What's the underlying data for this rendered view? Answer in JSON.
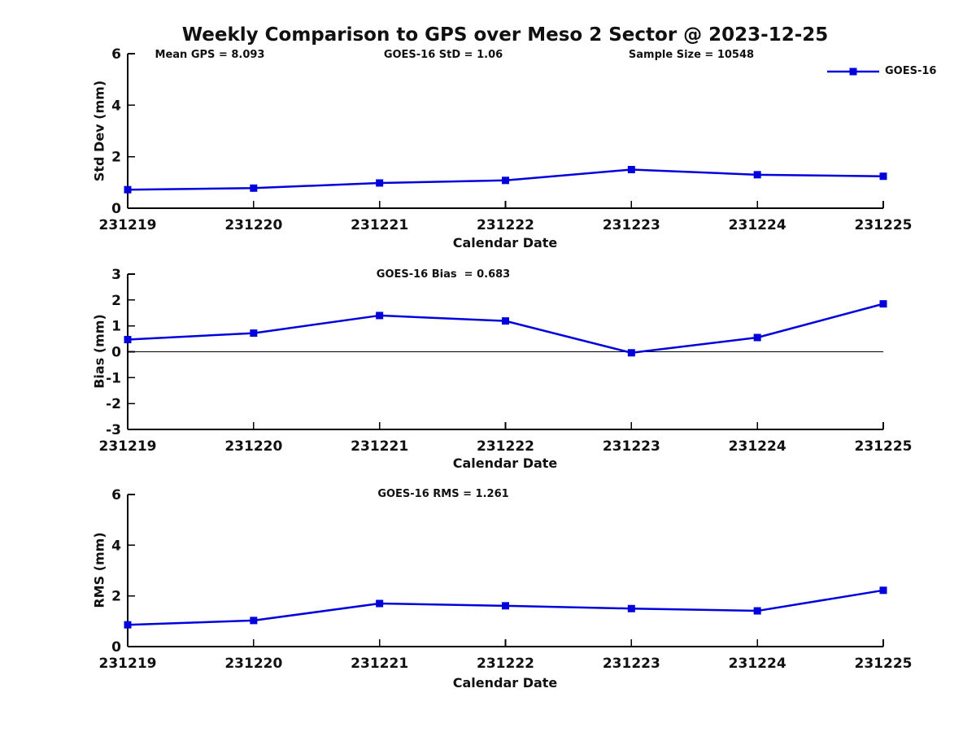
{
  "figure": {
    "title": "Weekly Comparison to GPS over Meso 2 Sector @ 2023-12-25",
    "background": "#ffffff",
    "text_color": "#111111",
    "accent_color": "#0000dd"
  },
  "header_stats": {
    "mean_gps": "Mean GPS = 8.093",
    "goes_std": "GOES-16 StD = 1.06",
    "sample_size": "Sample Size = 10548"
  },
  "legend": {
    "label": "GOES-16",
    "line_color": "#0000dd",
    "marker": "filled-square-marker",
    "position": "top-right-outside"
  },
  "chart_data": [
    {
      "type": "line",
      "title": "",
      "ylabel": "Std Dev (mm)",
      "xlabel": "Calendar Date",
      "categories": [
        "231219",
        "231220",
        "231221",
        "231222",
        "231223",
        "231224",
        "231225"
      ],
      "series": [
        {
          "name": "GOES-16",
          "color": "#0000dd",
          "marker": "square",
          "values": [
            0.72,
            0.78,
            0.98,
            1.08,
            1.5,
            1.3,
            1.24
          ]
        }
      ],
      "ylim": [
        0,
        6
      ],
      "yticks": [
        0,
        2,
        4,
        6
      ],
      "grid": false,
      "zero_line": false,
      "legend_position": "top-right"
    },
    {
      "type": "line",
      "title": "GOES-16 Bias  = 0.683",
      "ylabel": "Bias (mm)",
      "xlabel": "Calendar Date",
      "categories": [
        "231219",
        "231220",
        "231221",
        "231222",
        "231223",
        "231224",
        "231225"
      ],
      "series": [
        {
          "name": "GOES-16",
          "color": "#0000dd",
          "marker": "square",
          "values": [
            0.47,
            0.72,
            1.4,
            1.19,
            -0.04,
            0.55,
            1.85
          ]
        }
      ],
      "ylim": [
        -3,
        3
      ],
      "yticks": [
        -3,
        -2,
        -1,
        0,
        1,
        2,
        3
      ],
      "grid": false,
      "zero_line": true,
      "legend_position": "none"
    },
    {
      "type": "line",
      "title": "GOES-16 RMS = 1.261",
      "ylabel": "RMS (mm)",
      "xlabel": "Calendar Date",
      "categories": [
        "231219",
        "231220",
        "231221",
        "231222",
        "231223",
        "231224",
        "231225"
      ],
      "series": [
        {
          "name": "GOES-16",
          "color": "#0000dd",
          "marker": "square",
          "values": [
            0.86,
            1.03,
            1.7,
            1.61,
            1.5,
            1.41,
            2.22
          ]
        }
      ],
      "ylim": [
        0,
        6
      ],
      "yticks": [
        0,
        2,
        4,
        6
      ],
      "grid": false,
      "zero_line": false,
      "legend_position": "none"
    }
  ]
}
